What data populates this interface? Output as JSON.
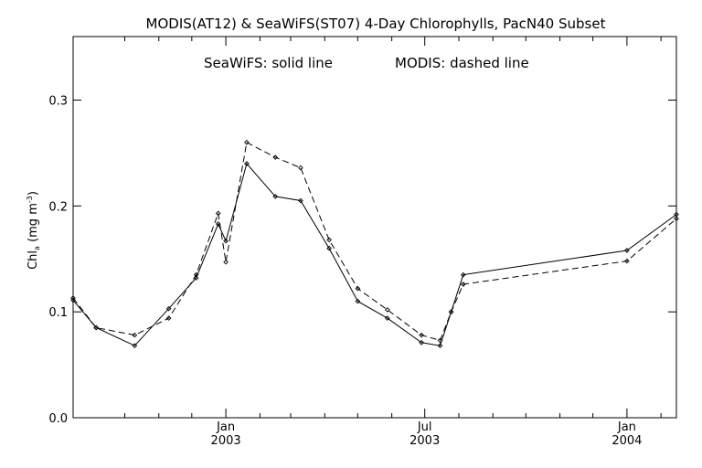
{
  "chart_data": {
    "type": "line",
    "title": "MODIS(AT12) & SeaWiFS(ST07) 4-Day Chlorophylls, PacN40 Subset",
    "annotation": {
      "seawifs": "SeaWiFS: solid line",
      "modis": "MODIS: dashed line"
    },
    "ylabel": {
      "main": "Chl",
      "subscript": "a",
      "units_open": " (mg m",
      "units_sup": "-3",
      "units_close": ")"
    },
    "xlabel": "",
    "ylim": [
      0.0,
      0.36
    ],
    "yticks": [
      "0.0",
      "0.1",
      "0.2",
      "0.3"
    ],
    "xlim": [
      "2002-08-15",
      "2004-02-15"
    ],
    "xticks": [
      {
        "month": "Jan",
        "year": "2003",
        "date": "2003-01-01"
      },
      {
        "month": "Jul",
        "year": "2003",
        "date": "2003-07-01"
      },
      {
        "month": "Jan",
        "year": "2004",
        "date": "2004-01-01"
      }
    ],
    "minor_ticks": [
      "2002-10-01",
      "2002-11-01",
      "2002-12-01",
      "2003-02-01",
      "2003-03-01",
      "2003-04-01",
      "2003-05-01",
      "2003-06-01",
      "2003-08-01",
      "2003-09-01",
      "2003-10-01",
      "2003-11-01",
      "2003-12-01",
      "2004-02-01"
    ],
    "grid": false,
    "series": [
      {
        "name": "SeaWiFS",
        "style": "solid",
        "color": "#000000",
        "points": [
          {
            "x": "2002-08-15",
            "y": 0.111
          },
          {
            "x": "2002-09-05",
            "y": 0.085
          },
          {
            "x": "2002-10-10",
            "y": 0.068
          },
          {
            "x": "2002-11-10",
            "y": 0.103
          },
          {
            "x": "2002-12-05",
            "y": 0.132
          },
          {
            "x": "2002-12-25",
            "y": 0.183
          },
          {
            "x": "2003-01-01",
            "y": 0.167
          },
          {
            "x": "2003-01-20",
            "y": 0.24
          },
          {
            "x": "2003-02-15",
            "y": 0.209
          },
          {
            "x": "2003-03-10",
            "y": 0.205
          },
          {
            "x": "2003-04-05",
            "y": 0.16
          },
          {
            "x": "2003-05-01",
            "y": 0.11
          },
          {
            "x": "2003-05-28",
            "y": 0.094
          },
          {
            "x": "2003-06-28",
            "y": 0.071
          },
          {
            "x": "2003-07-15",
            "y": 0.068
          },
          {
            "x": "2003-07-25",
            "y": 0.1
          },
          {
            "x": "2003-08-05",
            "y": 0.135
          },
          {
            "x": "2004-01-01",
            "y": 0.158
          },
          {
            "x": "2004-02-15",
            "y": 0.192
          }
        ]
      },
      {
        "name": "MODIS",
        "style": "dashed",
        "color": "#000000",
        "points": [
          {
            "x": "2002-08-15",
            "y": 0.113
          },
          {
            "x": "2002-09-05",
            "y": 0.085
          },
          {
            "x": "2002-10-10",
            "y": 0.078
          },
          {
            "x": "2002-11-10",
            "y": 0.094
          },
          {
            "x": "2002-12-05",
            "y": 0.135
          },
          {
            "x": "2002-12-25",
            "y": 0.193
          },
          {
            "x": "2003-01-01",
            "y": 0.147
          },
          {
            "x": "2003-01-20",
            "y": 0.26
          },
          {
            "x": "2003-02-15",
            "y": 0.246
          },
          {
            "x": "2003-03-10",
            "y": 0.236
          },
          {
            "x": "2003-04-05",
            "y": 0.168
          },
          {
            "x": "2003-05-01",
            "y": 0.122
          },
          {
            "x": "2003-05-28",
            "y": 0.102
          },
          {
            "x": "2003-06-28",
            "y": 0.078
          },
          {
            "x": "2003-07-15",
            "y": 0.073
          },
          {
            "x": "2003-07-25",
            "y": 0.1
          },
          {
            "x": "2003-08-05",
            "y": 0.126
          },
          {
            "x": "2004-01-01",
            "y": 0.148
          },
          {
            "x": "2004-02-15",
            "y": 0.188
          }
        ]
      }
    ]
  }
}
